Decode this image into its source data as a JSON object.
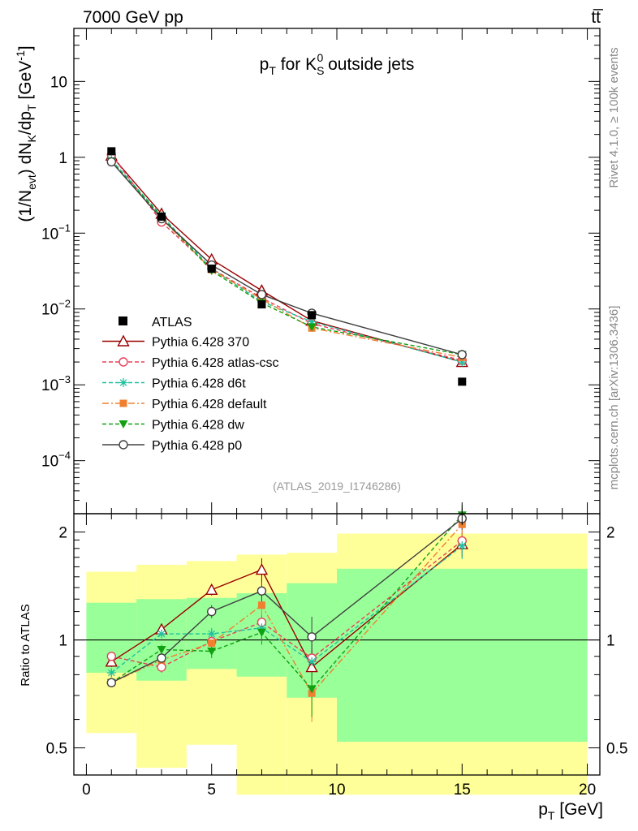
{
  "header": {
    "left": "7000 GeV pp",
    "right": "tt̅",
    "side_top": "Rivet 4.1.0, ≥ 100k events",
    "side_bottom": "mcplots.cern.ch [arXiv:1306.3436]",
    "analysis": "(ATLAS_2019_I1746286)"
  },
  "chart_data": {
    "type": "line",
    "title": "p_T for K_S^0 outside jets",
    "title_parts": {
      "p": "p",
      "T": "T",
      "mid": " for K",
      "S": "S",
      "zero": "0",
      "tail": " outside jets"
    },
    "xlabel": "p_T [GeV]",
    "xlabel_parts": {
      "p": "p",
      "T": "T",
      "unit": " [GeV]"
    },
    "ylabel": "(1/N_evt) dN_K/dp_T [GeV^-1]",
    "ylabel_parts": {
      "a": "(1/N",
      "evt": "evt",
      "b": ") dN",
      "K": "K",
      "c": "/dp",
      "T": "T",
      "d": " [GeV",
      "sup": "-1",
      "e": "]"
    },
    "ratio_ylabel": "Ratio to ATLAS",
    "xlim": [
      -0.5,
      20.5
    ],
    "ylim": [
      2e-05,
      50
    ],
    "ratio_ylim": [
      0.42,
      2.25
    ],
    "x_ticks": [
      "0",
      "5",
      "10",
      "15",
      "20"
    ],
    "y_ticks": [
      {
        "base": "10",
        "exp": "",
        "value": 10
      },
      {
        "base": "1",
        "exp": "",
        "value": 1
      },
      {
        "base": "10",
        "exp": "−1",
        "value": 0.1
      },
      {
        "base": "10",
        "exp": "−2",
        "value": 0.01
      },
      {
        "base": "10",
        "exp": "−3",
        "value": 0.001
      },
      {
        "base": "10",
        "exp": "−4",
        "value": 0.0001
      }
    ],
    "ratio_ticks": [
      {
        "label": "0.5",
        "value": 0.5
      },
      {
        "label": "1",
        "value": 1
      },
      {
        "label": "2",
        "value": 2
      }
    ],
    "x": [
      1,
      3,
      5,
      7,
      9,
      15
    ],
    "bins": [
      [
        0,
        2
      ],
      [
        2,
        4
      ],
      [
        4,
        6
      ],
      [
        6,
        8
      ],
      [
        8,
        10
      ],
      [
        10,
        20
      ]
    ],
    "data": {
      "name": "ATLAS",
      "values": [
        1.2,
        0.165,
        0.034,
        0.0115,
        0.0083,
        0.0011
      ],
      "band_inner": [
        [
          0.81,
          1.27
        ],
        [
          0.77,
          1.3
        ],
        [
          0.83,
          1.31
        ],
        [
          0.79,
          1.35
        ],
        [
          0.69,
          1.44
        ],
        [
          0.52,
          1.58
        ]
      ],
      "band_outer": [
        [
          0.55,
          1.55
        ],
        [
          0.44,
          1.62
        ],
        [
          0.51,
          1.66
        ],
        [
          0.37,
          1.73
        ],
        [
          0.37,
          1.75
        ],
        [
          0.37,
          1.98
        ]
      ]
    },
    "series": [
      {
        "name": "Pythia 6.428 370",
        "color": "#990000",
        "dash": "",
        "marker": "triangle-open",
        "values": [
          1.05,
          0.18,
          0.045,
          0.0175,
          0.007,
          0.002
        ],
        "ratio": [
          0.87,
          1.07,
          1.38,
          1.57,
          0.84,
          1.85
        ],
        "ratio_err": [
          0.03,
          0.03,
          0.05,
          0.12,
          0.1,
          0.15
        ]
      },
      {
        "name": "Pythia 6.428 atlas-csc",
        "color": "#e8405a",
        "dash": "5,3",
        "marker": "circle-open",
        "values": [
          1.08,
          0.14,
          0.034,
          0.014,
          0.0064,
          0.0021
        ],
        "ratio": [
          0.9,
          0.84,
          0.99,
          1.12,
          0.89,
          1.89
        ],
        "ratio_err": [
          0.02,
          0.03,
          0.04,
          0.08,
          0.1,
          0.15
        ]
      },
      {
        "name": "Pythia 6.428 d6t",
        "color": "#20c0a0",
        "dash": "5,3",
        "marker": "star",
        "values": [
          0.92,
          0.17,
          0.034,
          0.0125,
          0.0068,
          0.002
        ],
        "ratio": [
          0.81,
          1.04,
          1.04,
          1.08,
          0.87,
          1.83
        ],
        "ratio_err": [
          0.02,
          0.03,
          0.04,
          0.08,
          0.1,
          0.15
        ]
      },
      {
        "name": "Pythia 6.428 default",
        "color": "#f08030",
        "dash": "8,3,2,3",
        "marker": "square",
        "values": [
          0.88,
          0.155,
          0.033,
          0.0135,
          0.0056,
          0.0023
        ],
        "ratio": [
          0.76,
          0.88,
          0.98,
          1.25,
          0.71,
          2.1
        ],
        "ratio_err": [
          0.02,
          0.03,
          0.04,
          0.08,
          0.12,
          0.15
        ]
      },
      {
        "name": "Pythia 6.428 dw",
        "color": "#10a010",
        "dash": "5,3",
        "marker": "triangle-down",
        "values": [
          0.88,
          0.165,
          0.032,
          0.012,
          0.0058,
          0.0025
        ],
        "ratio": [
          0.76,
          0.94,
          0.93,
          1.05,
          0.73,
          2.23
        ],
        "ratio_err": [
          0.02,
          0.03,
          0.04,
          0.08,
          0.12,
          0.15
        ]
      },
      {
        "name": "Pythia 6.428 p0",
        "color": "#404040",
        "dash": "",
        "marker": "circle-open",
        "values": [
          0.87,
          0.155,
          0.038,
          0.0155,
          0.0088,
          0.0025
        ],
        "ratio": [
          0.76,
          0.89,
          1.2,
          1.37,
          1.02,
          2.18
        ],
        "ratio_err": [
          0.02,
          0.03,
          0.05,
          0.1,
          0.14,
          0.15
        ]
      }
    ]
  }
}
